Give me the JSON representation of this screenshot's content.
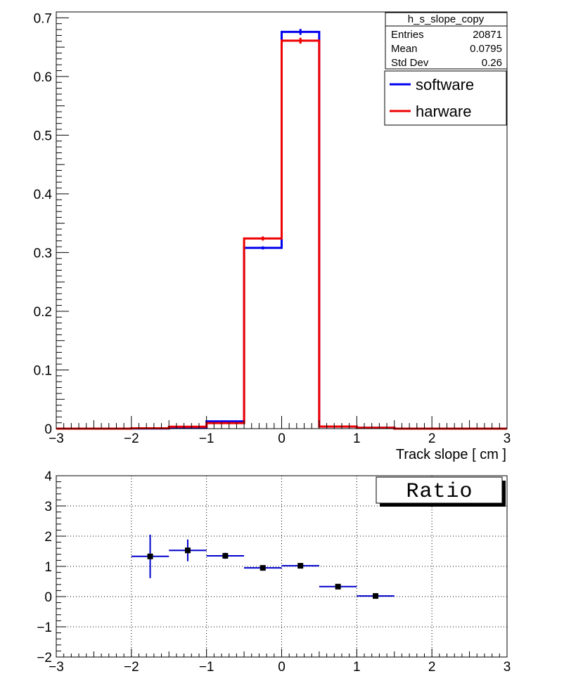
{
  "chart_data": [
    {
      "type": "histogram",
      "xlabel": "Track slope [ cm ]",
      "ylabel": "",
      "xlim": [
        -3,
        3
      ],
      "ylim": [
        0,
        0.71
      ],
      "x_ticks": [
        "−3",
        "−2",
        "−1",
        "0",
        "1",
        "2",
        "3"
      ],
      "y_ticks": [
        "0",
        "0.1",
        "0.2",
        "0.3",
        "0.4",
        "0.5",
        "0.6",
        "0.7"
      ],
      "y_tick_values": [
        0,
        0.1,
        0.2,
        0.3,
        0.4,
        0.5,
        0.6,
        0.7
      ],
      "bin_edges": [
        -3,
        -2.5,
        -2,
        -1.5,
        -1,
        -0.5,
        0,
        0.5,
        1,
        1.5,
        2,
        2.5,
        3
      ],
      "series": [
        {
          "name": "software",
          "color": "#0000ee",
          "values": [
            0,
            0,
            0.0004,
            0.0022,
            0.0125,
            0.308,
            0.676,
            0.0035,
            0.0015,
            0,
            0,
            0
          ],
          "errors": [
            0,
            0,
            0.0002,
            0.0005,
            0.0012,
            0.0026,
            0.005,
            0.0006,
            0.0004,
            0,
            0,
            0
          ]
        },
        {
          "name": "harware",
          "color": "#ee0000",
          "values": [
            0,
            0,
            0.0006,
            0.0034,
            0.0094,
            0.324,
            0.661,
            0.0036,
            0.0016,
            0,
            0,
            0
          ],
          "errors": [
            0,
            0,
            0.0003,
            0.0007,
            0.0012,
            0.0035,
            0.005,
            0.0007,
            0.0004,
            0,
            0,
            0
          ]
        }
      ],
      "stats_box": {
        "title": "h_s_slope_copy",
        "rows": [
          {
            "label": "Entries",
            "value": "20871"
          },
          {
            "label": "Mean",
            "value": "0.0795"
          },
          {
            "label": "Std Dev",
            "value": "0.26"
          }
        ]
      },
      "legend": {
        "position": "top-right"
      },
      "grid": false
    },
    {
      "type": "scatter",
      "title": "Ratio",
      "xlim": [
        -3,
        3
      ],
      "ylim": [
        -2,
        4
      ],
      "x_ticks": [
        "−3",
        "−2",
        "−1",
        "0",
        "1",
        "2",
        "3"
      ],
      "y_ticks": [
        "−2",
        "−1",
        "0",
        "1",
        "2",
        "3",
        "4"
      ],
      "y_tick_values": [
        -2,
        -1,
        0,
        1,
        2,
        3,
        4
      ],
      "grid": true,
      "marker_color": "#000000",
      "error_color": "#0000cc",
      "x_half_width": 0.25,
      "points": [
        {
          "x": -1.75,
          "y": 1.33,
          "yerr": 0.72
        },
        {
          "x": -1.25,
          "y": 1.53,
          "yerr": 0.36
        },
        {
          "x": -0.75,
          "y": 1.35,
          "yerr": 0.1
        },
        {
          "x": -0.25,
          "y": 0.95,
          "yerr": 0.02
        },
        {
          "x": 0.25,
          "y": 1.02,
          "yerr": 0.02
        },
        {
          "x": 0.75,
          "y": 0.33,
          "yerr": 0.03
        },
        {
          "x": 1.25,
          "y": 0.02,
          "yerr": 0.03
        }
      ]
    }
  ]
}
